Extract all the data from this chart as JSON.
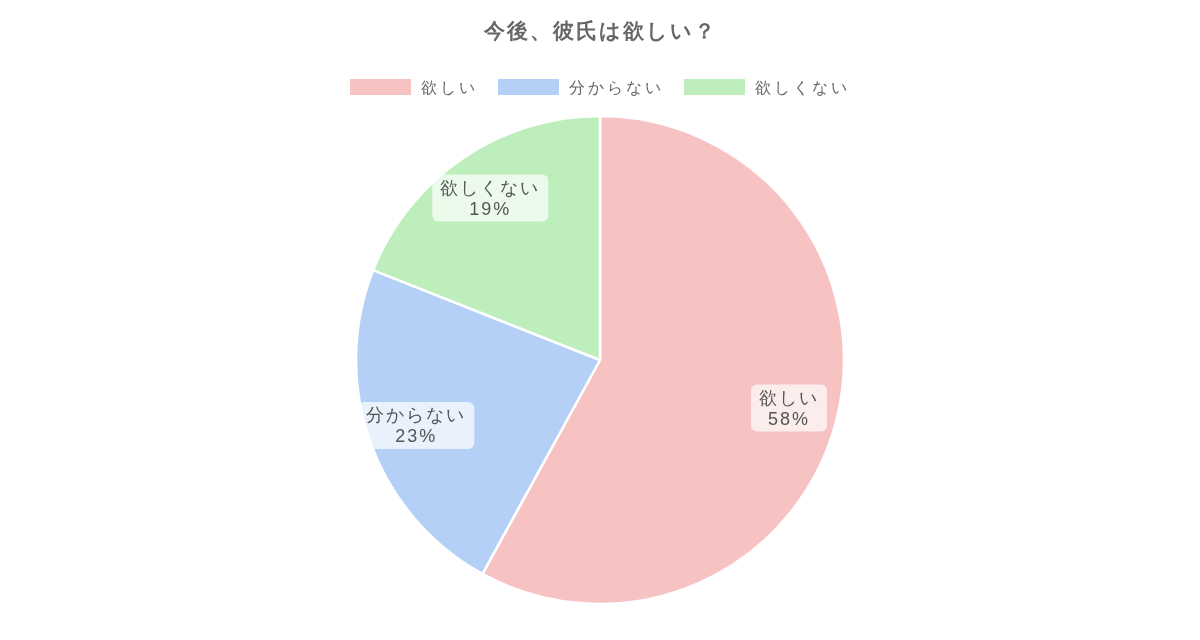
{
  "chart_data": {
    "type": "pie",
    "title": "今後、彼氏は欲しい？",
    "categories": [
      "欲しい",
      "分からない",
      "欲しくない"
    ],
    "values": [
      58,
      23,
      19
    ],
    "value_labels": [
      "58%",
      "23%",
      "19%"
    ],
    "colors": [
      "#f6c2c2",
      "#b4d0f7",
      "#bdeebb"
    ],
    "legend": "top"
  }
}
